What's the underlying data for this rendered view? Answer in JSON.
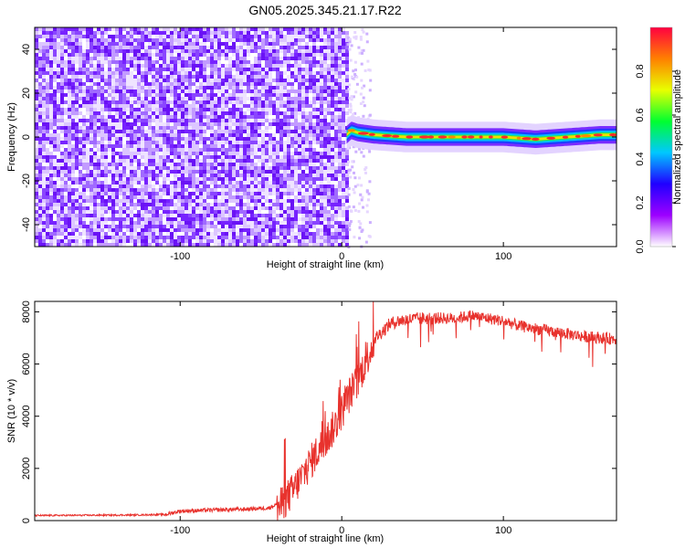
{
  "title": "GN05.2025.345.21.17.R22",
  "chart_data": [
    {
      "type": "heatmap",
      "xlabel": "Height of straight line (km)",
      "ylabel": "Frequency (Hz)",
      "xlim": [
        -190,
        170
      ],
      "ylim": [
        -50,
        50
      ],
      "xticks": [
        -100,
        0,
        100
      ],
      "yticks": [
        -40,
        -20,
        0,
        20,
        40
      ],
      "colorbar": {
        "label": "Normalized spectral amplitude",
        "range": [
          0,
          1
        ],
        "ticks": [
          "0.0",
          "0.2",
          "0.4",
          "0.6",
          "0.8"
        ],
        "colors": [
          "#ffffff",
          "#9d00ff",
          "#2000ff",
          "#00c8ff",
          "#00ff30",
          "#e8ff00",
          "#ff8000",
          "#ff0040"
        ]
      },
      "noise_region_x": [
        -190,
        3
      ],
      "signal_band": {
        "center_hz": [
          [
            3,
            1
          ],
          [
            6,
            3
          ],
          [
            10,
            2
          ],
          [
            20,
            1
          ],
          [
            40,
            0
          ],
          [
            60,
            0
          ],
          [
            80,
            0
          ],
          [
            100,
            0
          ],
          [
            120,
            -1
          ],
          [
            140,
            0
          ],
          [
            160,
            1
          ],
          [
            170,
            1
          ]
        ],
        "peak_amplitude": 0.9
      }
    },
    {
      "type": "line",
      "xlabel": "Height of straight line (km)",
      "ylabel": "SNR (10 * v/v)",
      "xlim": [
        -190,
        170
      ],
      "ylim": [
        0,
        8400
      ],
      "xticks": [
        -100,
        0,
        100
      ],
      "yticks": [
        0,
        2000,
        4000,
        6000,
        8000
      ],
      "color": "#e8322d",
      "series": [
        {
          "x": [
            -190,
            -160,
            -130,
            -110,
            -100,
            -80,
            -60,
            -45,
            -38,
            -30,
            -20,
            -15,
            -10,
            -5,
            0,
            5,
            10,
            15,
            20,
            25,
            30,
            35,
            40,
            50,
            60,
            70,
            80,
            90,
            100,
            110,
            120,
            130,
            140,
            150,
            160,
            170
          ],
          "y": [
            200,
            210,
            220,
            240,
            380,
            420,
            450,
            500,
            700,
            1300,
            2300,
            2800,
            3200,
            3700,
            4300,
            5000,
            5500,
            6300,
            7000,
            7300,
            7600,
            7700,
            7750,
            7800,
            7800,
            7800,
            7900,
            7800,
            7700,
            7500,
            7400,
            7300,
            7200,
            7100,
            7050,
            7000
          ]
        }
      ]
    }
  ]
}
